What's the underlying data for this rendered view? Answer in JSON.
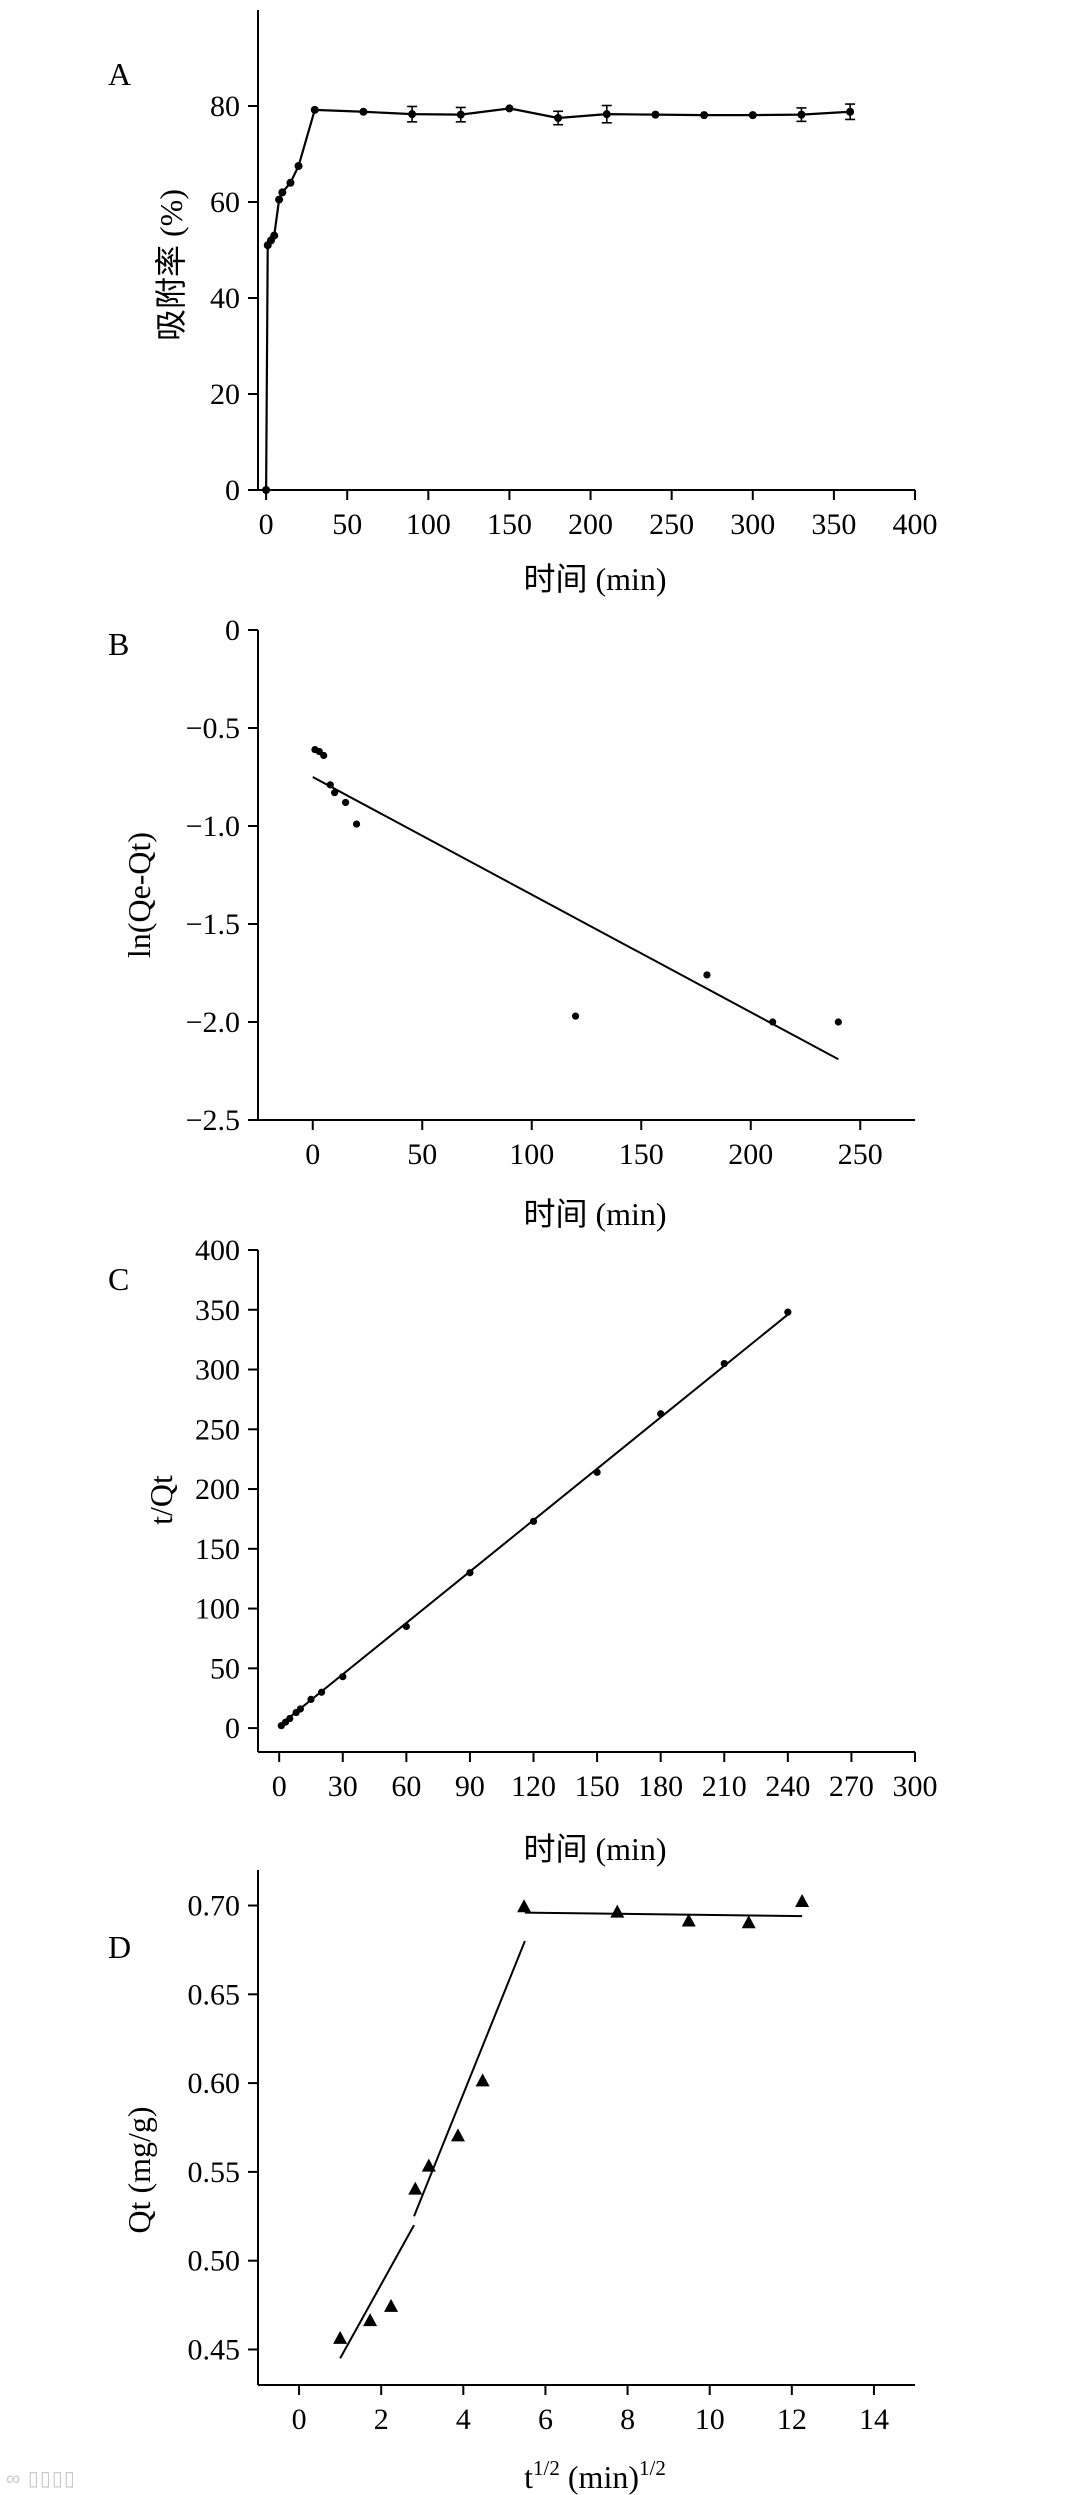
{
  "chart_data": [
    {
      "type": "line",
      "panel_letter": "A",
      "xlabel": "时间 (min)",
      "ylabel": "吸附率 (%)",
      "xlim": [
        -5,
        400
      ],
      "ylim": [
        0,
        100
      ],
      "xticks": [
        0,
        50,
        100,
        150,
        200,
        250,
        300,
        350,
        400
      ],
      "yticks": [
        0,
        20,
        40,
        60,
        80
      ],
      "series": [
        {
          "name": "吸附率",
          "x": [
            0,
            1,
            3,
            5,
            8,
            10,
            15,
            20,
            30,
            60,
            90,
            120,
            150,
            180,
            210,
            240,
            270,
            300,
            330,
            360
          ],
          "y": [
            0,
            51,
            52,
            53,
            60.5,
            62,
            64,
            67.5,
            79.2,
            78.8,
            78.3,
            78.2,
            79.5,
            77.5,
            78.3,
            78.2,
            78.1,
            78.1,
            78.2,
            78.8
          ],
          "err": [
            0,
            0,
            0,
            0,
            0,
            0,
            0,
            0,
            0,
            0,
            1.6,
            1.5,
            0,
            1.4,
            1.8,
            0,
            0,
            0,
            1.4,
            1.6
          ]
        }
      ]
    },
    {
      "type": "scatter",
      "panel_letter": "B",
      "xlabel": "时间 (min)",
      "ylabel": "ln(Qe-Qt)",
      "xlim": [
        -25,
        275
      ],
      "ylim": [
        -2.5,
        0
      ],
      "xticks": [
        0,
        50,
        100,
        150,
        200,
        250
      ],
      "yticks": [
        0,
        -0.5,
        -1.0,
        -1.5,
        -2.0,
        -2.5
      ],
      "ytick_labels": [
        "0",
        "−0.5",
        "−1.0",
        "−1.5",
        "−2.0",
        "−2.5"
      ],
      "series": [
        {
          "name": "data",
          "marker": "circle",
          "x": [
            1,
            3,
            5,
            8,
            10,
            15,
            20,
            120,
            180,
            210,
            240
          ],
          "y": [
            -0.61,
            -0.62,
            -0.64,
            -0.79,
            -0.83,
            -0.88,
            -0.99,
            -1.97,
            -1.76,
            -2.0,
            -2.0
          ]
        }
      ],
      "fits": [
        {
          "x": [
            0,
            240
          ],
          "y": [
            -0.75,
            -2.19
          ]
        }
      ]
    },
    {
      "type": "scatter",
      "panel_letter": "C",
      "xlabel": "时间 (min)",
      "ylabel": "t/Qt",
      "xlim": [
        -10,
        300
      ],
      "ylim": [
        -20,
        400
      ],
      "xticks": [
        0,
        30,
        60,
        90,
        120,
        150,
        180,
        210,
        240,
        270,
        300
      ],
      "yticks": [
        0,
        50,
        100,
        150,
        200,
        250,
        300,
        350,
        400
      ],
      "series": [
        {
          "name": "data",
          "marker": "circle",
          "x": [
            1,
            3,
            5,
            8,
            10,
            15,
            20,
            30,
            60,
            90,
            120,
            150,
            180,
            210,
            240
          ],
          "y": [
            2,
            5,
            8,
            13,
            16,
            24,
            30,
            43,
            85,
            130,
            173,
            214,
            263,
            305,
            348
          ]
        }
      ],
      "fits": [
        {
          "x": [
            0,
            240
          ],
          "y": [
            2,
            346
          ]
        }
      ]
    },
    {
      "type": "scatter",
      "panel_letter": "D",
      "xlabel_main": "t",
      "xlabel_sup1": "1/2",
      "xlabel_mid": " (min)",
      "xlabel_sup2": "1/2",
      "ylabel": "Qt (mg/g)",
      "xlim": [
        -1,
        15
      ],
      "ylim": [
        0.43,
        0.72
      ],
      "xticks": [
        0,
        2,
        4,
        6,
        8,
        10,
        12,
        14
      ],
      "yticks": [
        0.45,
        0.5,
        0.55,
        0.6,
        0.65,
        0.7
      ],
      "ytick_labels": [
        "0.45",
        "0.50",
        "0.55",
        "0.60",
        "0.65",
        "0.70"
      ],
      "series": [
        {
          "name": "data",
          "marker": "triangle",
          "x": [
            1,
            1.73,
            2.24,
            2.83,
            3.16,
            3.87,
            4.47,
            5.48,
            7.75,
            9.49,
            10.95,
            12.25
          ],
          "y": [
            0.456,
            0.466,
            0.474,
            0.54,
            0.553,
            0.57,
            0.601,
            0.699,
            0.696,
            0.691,
            0.69,
            0.702
          ]
        }
      ],
      "fits": [
        {
          "x": [
            1.0,
            2.8
          ],
          "y": [
            0.445,
            0.52
          ]
        },
        {
          "x": [
            2.8,
            5.5
          ],
          "y": [
            0.525,
            0.68
          ]
        },
        {
          "x": [
            5.5,
            12.25
          ],
          "y": [
            0.696,
            0.694
          ]
        }
      ]
    }
  ]
}
